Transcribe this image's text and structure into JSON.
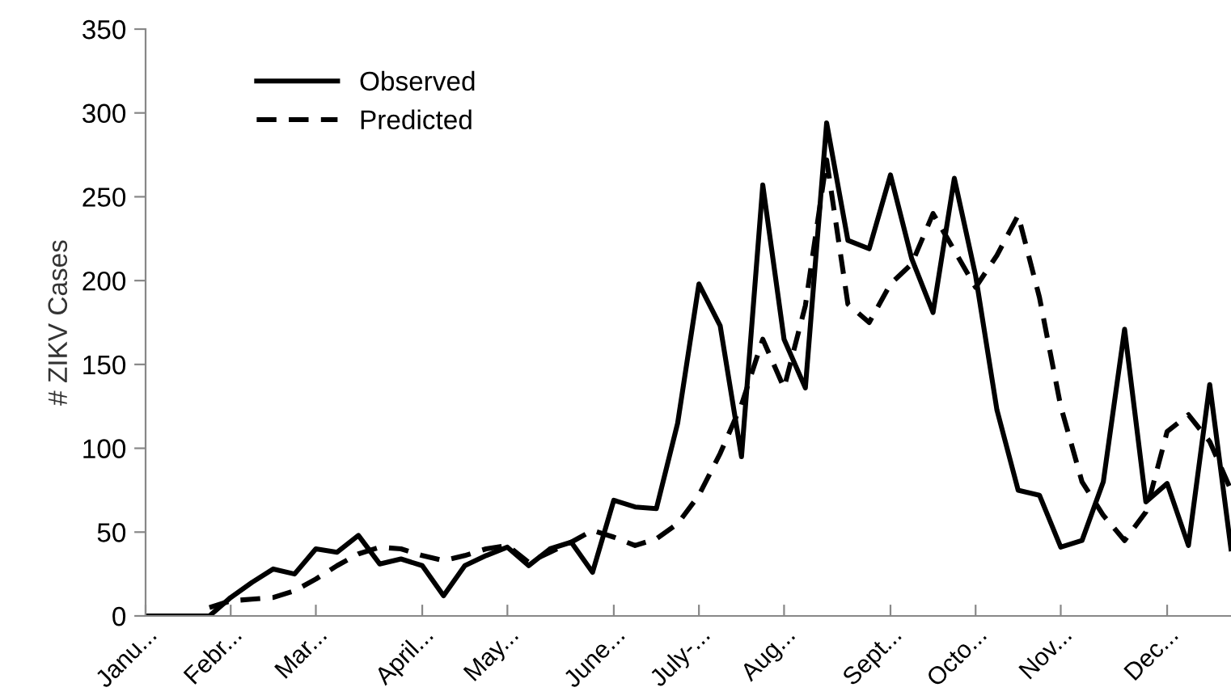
{
  "chart_data": {
    "type": "line",
    "ylabel": "# ZIKV Cases",
    "categories": [
      "Janu...",
      null,
      null,
      null,
      "Febr...",
      null,
      null,
      null,
      "Mar...",
      null,
      null,
      null,
      null,
      "April...",
      null,
      null,
      null,
      "May...",
      null,
      null,
      null,
      null,
      "June...",
      null,
      null,
      null,
      "July-...",
      null,
      null,
      null,
      "Aug...",
      null,
      null,
      null,
      null,
      "Sept...",
      null,
      null,
      null,
      "Octo...",
      null,
      null,
      null,
      "Nov...",
      null,
      null,
      null,
      null,
      "Dec...",
      null,
      null,
      null
    ],
    "series": [
      {
        "name": "Observed",
        "color": "#000000",
        "line_style": "solid",
        "values": [
          0,
          0,
          0,
          0,
          11,
          20,
          28,
          25,
          40,
          38,
          48,
          31,
          34,
          30,
          12,
          30,
          36,
          41,
          30,
          40,
          44,
          26,
          69,
          65,
          64,
          115,
          198,
          173,
          95,
          257,
          165,
          136,
          294,
          224,
          219,
          263,
          213,
          181,
          261,
          203,
          123,
          75,
          72,
          41,
          45,
          80,
          171,
          68,
          79,
          42,
          138,
          40
        ]
      },
      {
        "name": "Predicted",
        "color": "#000000",
        "line_style": "dashed",
        "values": [
          null,
          null,
          null,
          5,
          9,
          10,
          11,
          15,
          22,
          30,
          37,
          41,
          40,
          36,
          33,
          36,
          40,
          42,
          32,
          38,
          44,
          51,
          47,
          42,
          46,
          55,
          72,
          97,
          126,
          165,
          136,
          185,
          272,
          186,
          175,
          198,
          210,
          240,
          218,
          196,
          215,
          239,
          190,
          125,
          80,
          60,
          45,
          62,
          110,
          120,
          104,
          75
        ]
      }
    ],
    "ylim": [
      0,
      350
    ],
    "yticks": [
      0,
      50,
      100,
      150,
      200,
      250,
      300,
      350
    ],
    "grid": false,
    "legend": "top left",
    "marker": "none"
  }
}
